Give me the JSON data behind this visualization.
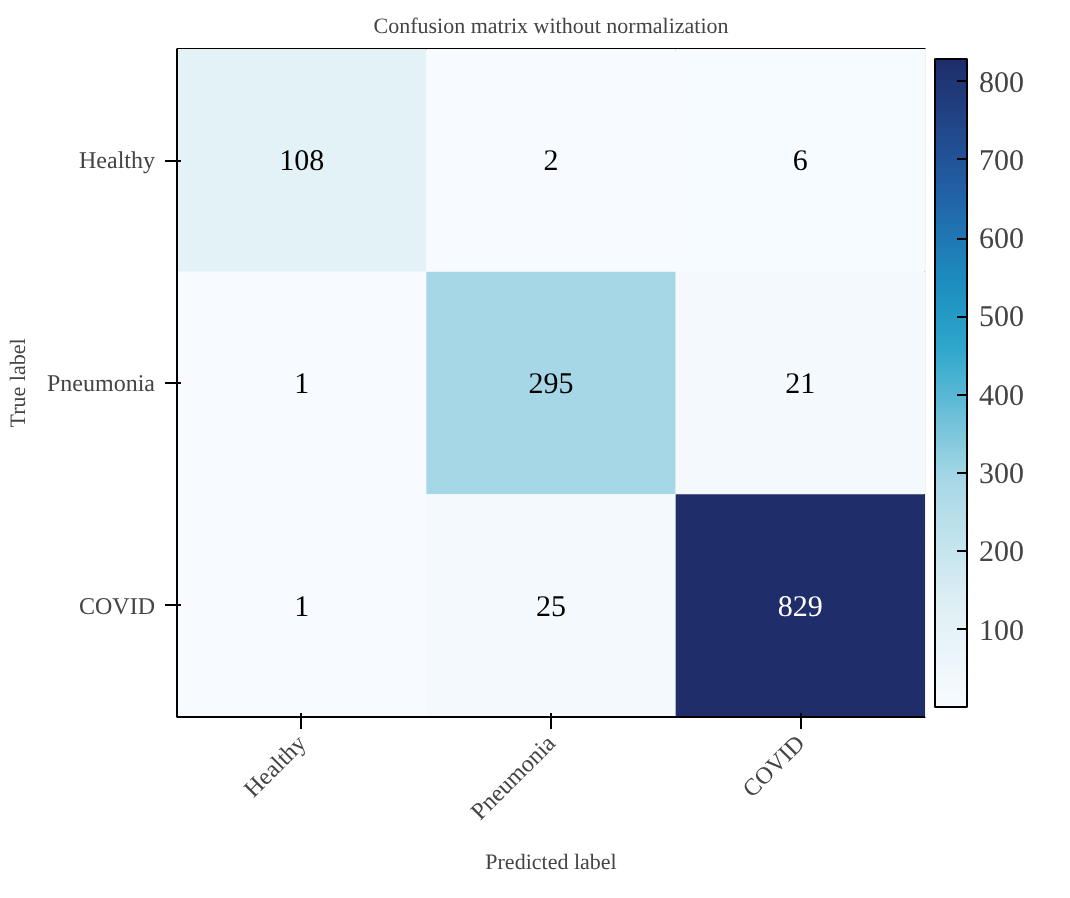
{
  "chart_data": {
    "type": "heatmap",
    "title": "Confusion matrix without normalization",
    "xlabel": "Predicted label",
    "ylabel": "True label",
    "categories": [
      "Healthy",
      "Pneumonia",
      "COVID"
    ],
    "y_categories": [
      "Healthy",
      "Pneumonia",
      "COVID"
    ],
    "cells": [
      [
        108,
        2,
        6
      ],
      [
        1,
        295,
        21
      ],
      [
        1,
        25,
        829
      ]
    ],
    "clim": [
      1,
      829
    ],
    "cticks": [
      100,
      200,
      300,
      400,
      500,
      600,
      700,
      800
    ],
    "data_labels": true
  }
}
